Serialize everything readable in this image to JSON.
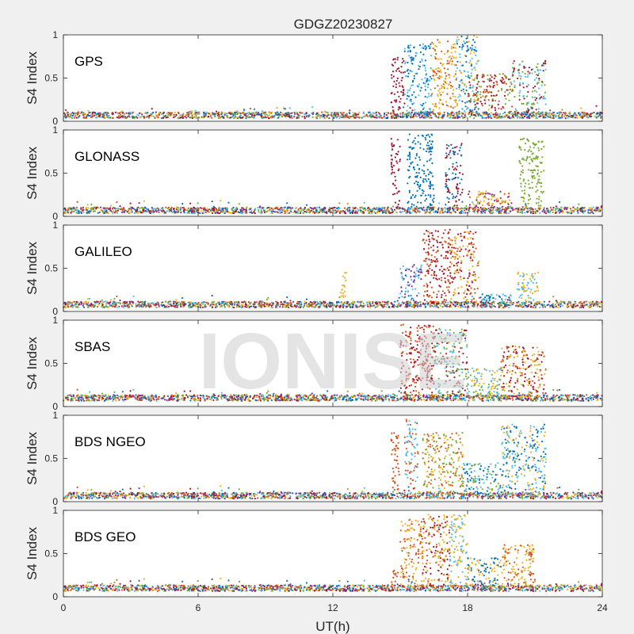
{
  "chart_data": {
    "type": "scatter",
    "title": "GDGZ20230827",
    "xlabel": "UT(h)",
    "ylabel": "S4 Index",
    "xlim": [
      0,
      24
    ],
    "ylim": [
      0,
      1
    ],
    "x_ticks": [
      0,
      6,
      12,
      18,
      24
    ],
    "y_ticks": [
      0,
      0.5,
      1
    ],
    "watermark": "IONISE",
    "grid": false,
    "legend": "none",
    "colors": [
      "#0072BD",
      "#D95319",
      "#EDB120",
      "#7E2F8E",
      "#77AC30",
      "#4DBEEE",
      "#A2142F"
    ],
    "panels": [
      {
        "label": "GPS",
        "baseline": 0.07,
        "bursts": [
          {
            "x": [
              14.6,
              15.2
            ],
            "peak": 0.75,
            "colors": [
              6
            ]
          },
          {
            "x": [
              15.2,
              16.4
            ],
            "peak": 0.9,
            "colors": [
              0,
              5
            ]
          },
          {
            "x": [
              16.4,
              17.5
            ],
            "peak": 0.95,
            "colors": [
              2,
              1
            ]
          },
          {
            "x": [
              17.5,
              18.5
            ],
            "peak": 1.0,
            "colors": [
              5,
              0,
              2
            ]
          },
          {
            "x": [
              18.0,
              20.0
            ],
            "peak": 0.55,
            "colors": [
              6,
              1,
              4
            ]
          },
          {
            "x": [
              20.0,
              21.5
            ],
            "peak": 0.7,
            "colors": [
              5,
              4,
              6
            ]
          }
        ]
      },
      {
        "label": "GLONASS",
        "baseline": 0.07,
        "bursts": [
          {
            "x": [
              14.6,
              15.0
            ],
            "peak": 0.9,
            "colors": [
              6
            ]
          },
          {
            "x": [
              15.3,
              16.5
            ],
            "peak": 0.95,
            "colors": [
              0
            ]
          },
          {
            "x": [
              17.0,
              17.8
            ],
            "peak": 0.85,
            "colors": [
              0,
              6
            ]
          },
          {
            "x": [
              18.0,
              20.0
            ],
            "peak": 0.3,
            "colors": [
              1,
              2,
              3
            ]
          },
          {
            "x": [
              20.3,
              21.4
            ],
            "peak": 0.9,
            "colors": [
              4
            ]
          }
        ]
      },
      {
        "label": "GALILEO",
        "baseline": 0.08,
        "bursts": [
          {
            "x": [
              12.3,
              12.6
            ],
            "peak": 0.45,
            "colors": [
              2
            ]
          },
          {
            "x": [
              15.0,
              16.0
            ],
            "peak": 0.55,
            "colors": [
              5,
              3
            ]
          },
          {
            "x": [
              16.0,
              17.2
            ],
            "peak": 0.95,
            "colors": [
              6,
              1
            ]
          },
          {
            "x": [
              17.2,
              18.5
            ],
            "peak": 0.95,
            "colors": [
              6,
              1,
              2
            ]
          },
          {
            "x": [
              18.5,
              20.0
            ],
            "peak": 0.2,
            "colors": [
              0,
              5
            ]
          },
          {
            "x": [
              20.2,
              21.2
            ],
            "peak": 0.45,
            "colors": [
              2,
              5
            ]
          }
        ]
      },
      {
        "label": "SBAS",
        "baseline": 0.1,
        "bursts": [
          {
            "x": [
              15.0,
              16.5
            ],
            "peak": 0.95,
            "colors": [
              1,
              6
            ]
          },
          {
            "x": [
              16.5,
              18.0
            ],
            "peak": 0.9,
            "colors": [
              4,
              5,
              6
            ]
          },
          {
            "x": [
              18.0,
              19.5
            ],
            "peak": 0.45,
            "colors": [
              2,
              4,
              5
            ]
          },
          {
            "x": [
              19.5,
              21.5
            ],
            "peak": 0.7,
            "colors": [
              1,
              6,
              2
            ]
          }
        ]
      },
      {
        "label": "BDS NGEO",
        "baseline": 0.07,
        "bursts": [
          {
            "x": [
              14.6,
              15.0
            ],
            "peak": 0.8,
            "colors": [
              1
            ]
          },
          {
            "x": [
              15.2,
              15.8
            ],
            "peak": 0.95,
            "colors": [
              5,
              1
            ]
          },
          {
            "x": [
              16.0,
              17.8
            ],
            "peak": 0.8,
            "colors": [
              2,
              4,
              1
            ]
          },
          {
            "x": [
              17.8,
              19.5
            ],
            "peak": 0.45,
            "colors": [
              5,
              4,
              0
            ]
          },
          {
            "x": [
              19.5,
              21.5
            ],
            "peak": 0.9,
            "colors": [
              0,
              2,
              5
            ]
          }
        ]
      },
      {
        "label": "BDS GEO",
        "baseline": 0.1,
        "bursts": [
          {
            "x": [
              14.6,
              14.9
            ],
            "peak": 0.35,
            "colors": [
              1
            ]
          },
          {
            "x": [
              15.0,
              16.0
            ],
            "peak": 0.9,
            "colors": [
              2,
              1
            ]
          },
          {
            "x": [
              16.0,
              17.2
            ],
            "peak": 0.95,
            "colors": [
              6,
              1,
              2
            ]
          },
          {
            "x": [
              17.2,
              18.0
            ],
            "peak": 0.95,
            "colors": [
              5,
              2
            ]
          },
          {
            "x": [
              18.0,
              19.5
            ],
            "peak": 0.45,
            "colors": [
              0,
              2
            ]
          },
          {
            "x": [
              19.5,
              21.0
            ],
            "peak": 0.6,
            "colors": [
              2,
              1
            ]
          }
        ]
      }
    ]
  }
}
